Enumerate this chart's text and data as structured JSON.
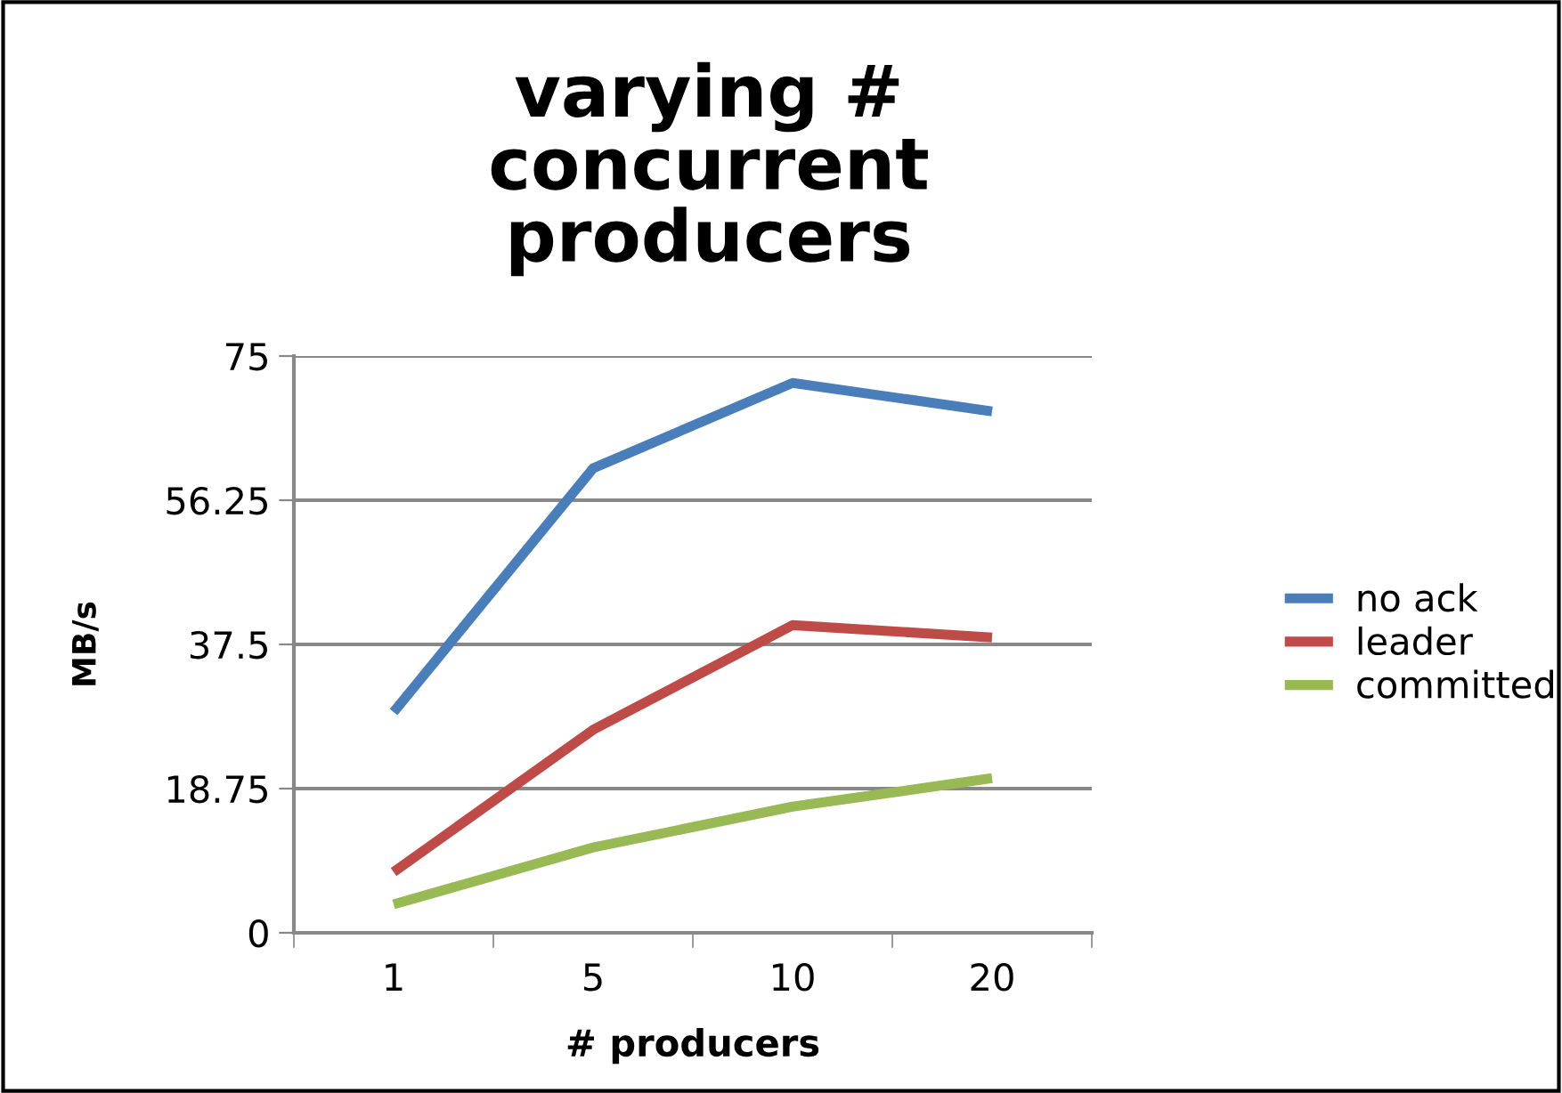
{
  "chart_data": {
    "type": "line",
    "title": "varying #\nconcurrent\nproducers",
    "xlabel": "# producers",
    "ylabel": "MB/s",
    "categories": [
      "1",
      "5",
      "10",
      "20"
    ],
    "series": [
      {
        "name": "no ack",
        "color": "#4a7ebb",
        "values": [
          28.7,
          60.4,
          71.5,
          67.8
        ]
      },
      {
        "name": "leader",
        "color": "#be4b48",
        "values": [
          7.9,
          26.4,
          40.0,
          38.4
        ]
      },
      {
        "name": "committed",
        "color": "#98b954",
        "values": [
          3.7,
          11.1,
          16.4,
          20.1
        ]
      }
    ],
    "ylim": [
      0,
      75
    ],
    "yticks": [
      0,
      18.75,
      37.5,
      56.25,
      75
    ],
    "grid": "y",
    "legend": "right",
    "marker": "none",
    "line_style": "solid"
  }
}
